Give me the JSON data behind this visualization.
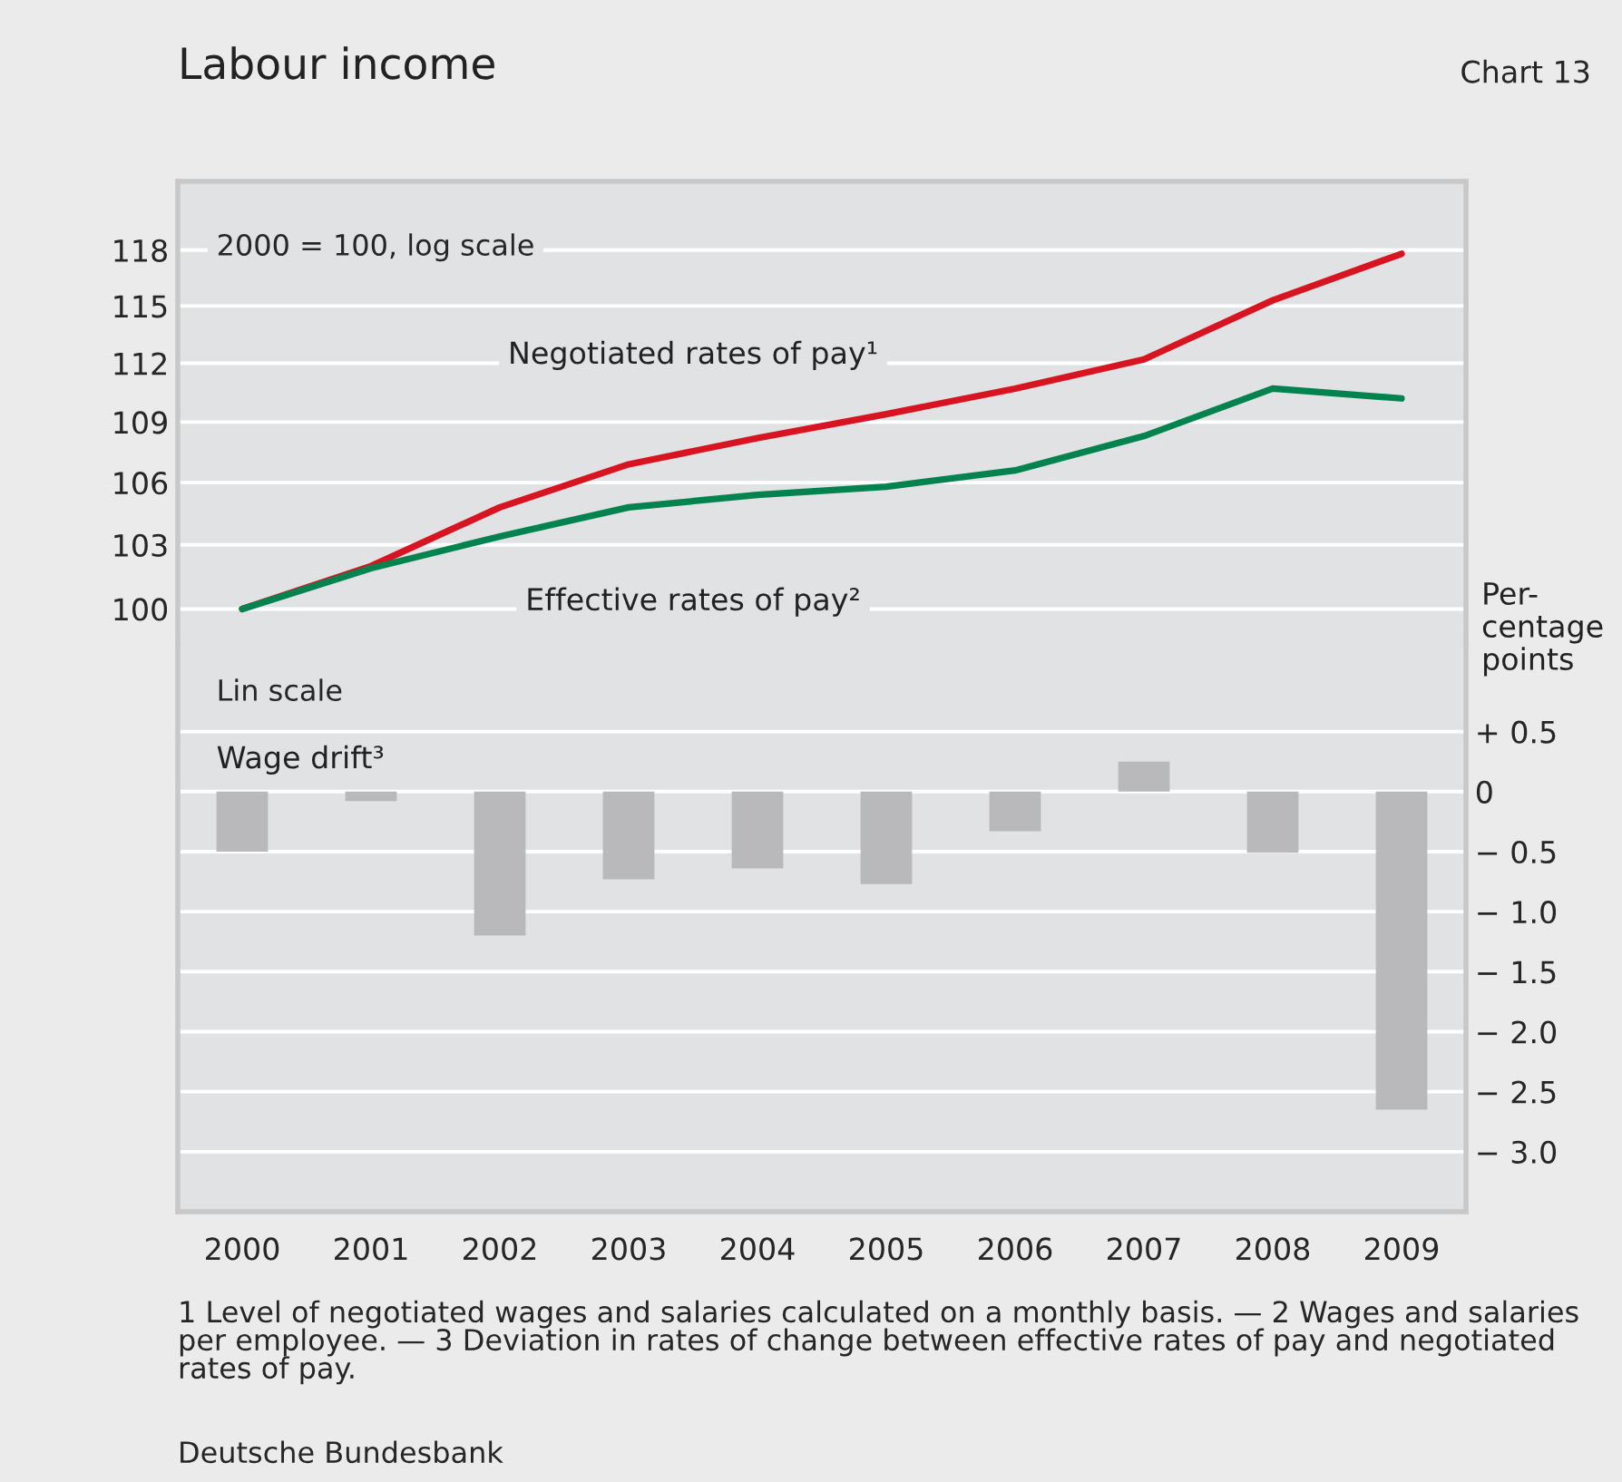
{
  "chart_data": [
    {
      "type": "line",
      "title": "Labour income",
      "categories": [
        "2000",
        "2001",
        "2002",
        "2003",
        "2004",
        "2005",
        "2006",
        "2007",
        "2008",
        "2009"
      ],
      "series": [
        {
          "name": "Negotiated rates of pay¹",
          "color": "#d7141f",
          "values": [
            100,
            102.0,
            104.8,
            106.9,
            108.2,
            109.4,
            110.7,
            112.2,
            115.3,
            117.8
          ]
        },
        {
          "name": "Effective rates of pay²",
          "color": "#00834f",
          "values": [
            100,
            101.9,
            103.4,
            104.8,
            105.4,
            105.8,
            106.6,
            108.3,
            110.7,
            110.2
          ]
        }
      ],
      "log": "y",
      "ylim": [
        98.4,
        121.8
      ],
      "yticks": [
        100,
        103,
        106,
        109,
        112,
        115,
        118
      ],
      "grid": "y",
      "legend": false,
      "tick_labels": "y",
      "annotations": [
        "Chart 13",
        "2000 = 100, log scale"
      ]
    },
    {
      "type": "bar",
      "categories": [
        "2000",
        "2001",
        "2002",
        "2003",
        "2004",
        "2005",
        "2006",
        "2007",
        "2008",
        "2009"
      ],
      "series": [
        {
          "name": "Wage drift³",
          "color": "#b9b9bb",
          "values": [
            -0.5,
            -0.08,
            -1.2,
            -0.73,
            -0.64,
            -0.77,
            -0.33,
            0.25,
            -0.51,
            -2.65
          ]
        }
      ],
      "ylabel": "Per-\ncentage\npoints",
      "ylim": [
        -3.5,
        1.23
      ],
      "yticks": [
        {
          "value": 0.5,
          "label": "+ 0.5"
        },
        0,
        {
          "value": -0.5,
          "label": "− 0.5"
        },
        {
          "value": -1.0,
          "label": "− 1.0"
        },
        {
          "value": -1.5,
          "label": "− 1.5"
        },
        {
          "value": -2.0,
          "label": "− 2.0"
        },
        {
          "value": -2.5,
          "label": "− 2.5"
        },
        {
          "value": -3.0,
          "label": "− 3.0"
        }
      ],
      "grid": "y",
      "legend": false,
      "annotations": [
        "Lin scale",
        "1 Level of negotiated wages and salaries calculated on a monthly basis. — 2 Wages and salaries per employee. — 3 Deviation in rates of change between effective rates of pay and negotiated rates of pay.",
        "Deutsche Bundesbank"
      ]
    }
  ]
}
